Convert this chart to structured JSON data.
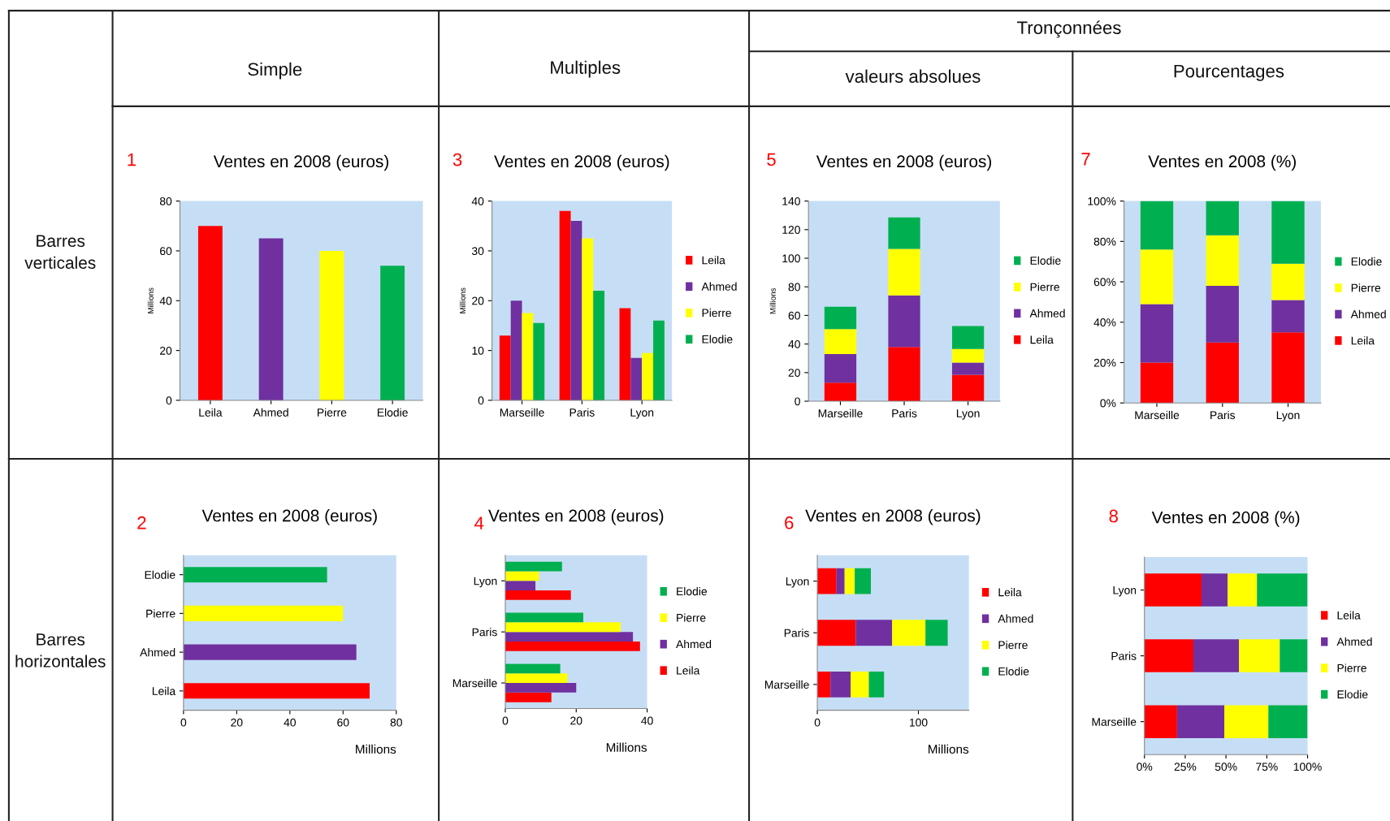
{
  "chart_data": [
    {
      "type": "bar",
      "title": "Ventes en 2008 (euros)",
      "annotations": [
        "1",
        "Simple",
        "Multiples",
        "Tronçonnées",
        "valeurs absolues",
        "Pourcentages",
        "Barres verticales",
        "Barres horizontales"
      ],
      "ylabel": "Millions",
      "categories": [
        "Leila",
        "Ahmed",
        "Pierre",
        "Elodie"
      ],
      "values": [
        70,
        65,
        60,
        54
      ],
      "colors": [
        "#ff0000",
        "#7030a0",
        "#ffff00",
        "#00b050"
      ],
      "ylim": [
        0,
        80
      ],
      "yticks": [
        0,
        20,
        40,
        60,
        80
      ],
      "legend": false
    },
    {
      "type": "bar",
      "title": "Ventes en 2008 (euros)",
      "annotations": [
        "2"
      ],
      "xlabel": "Millions",
      "orientation": "horizontal",
      "categories": [
        "Elodie",
        "Pierre",
        "Ahmed",
        "Leila"
      ],
      "values": [
        54,
        60,
        65,
        70
      ],
      "colors": [
        "#00b050",
        "#ffff00",
        "#7030a0",
        "#ff0000"
      ],
      "xlim": [
        0,
        80
      ],
      "xticks": [
        0,
        20,
        40,
        60,
        80
      ],
      "legend": false
    },
    {
      "type": "bar",
      "title": "Ventes en 2008 (euros)",
      "annotations": [
        "3"
      ],
      "ylabel": "Millions",
      "categories": [
        "Marseille",
        "Paris",
        "Lyon"
      ],
      "ylim": [
        0,
        40
      ],
      "yticks": [
        0,
        10,
        20,
        30,
        40
      ],
      "legend": "right",
      "series": [
        {
          "name": "Leila",
          "color": "#ff0000",
          "values": [
            13,
            38,
            18.5
          ]
        },
        {
          "name": "Ahmed",
          "color": "#7030a0",
          "values": [
            20,
            36,
            8.5
          ]
        },
        {
          "name": "Pierre",
          "color": "#ffff00",
          "values": [
            17.5,
            32.5,
            9.5
          ]
        },
        {
          "name": "Elodie",
          "color": "#00b050",
          "values": [
            15.5,
            22,
            16
          ]
        }
      ]
    },
    {
      "type": "bar",
      "title": "Ventes en 2008 (euros)",
      "annotations": [
        "4"
      ],
      "xlabel": "Millions",
      "orientation": "horizontal",
      "categories": [
        "Lyon",
        "Paris",
        "Marseille"
      ],
      "xlim": [
        0,
        40
      ],
      "xticks": [
        0,
        20,
        40
      ],
      "legend": "right",
      "series": [
        {
          "name": "Leila",
          "color": "#ff0000",
          "values": [
            18.5,
            38,
            13
          ]
        },
        {
          "name": "Ahmed",
          "color": "#7030a0",
          "values": [
            8.5,
            36,
            20
          ]
        },
        {
          "name": "Pierre",
          "color": "#ffff00",
          "values": [
            9.5,
            32.5,
            17.5
          ]
        },
        {
          "name": "Elodie",
          "color": "#00b050",
          "values": [
            16,
            22,
            15.5
          ]
        }
      ]
    },
    {
      "type": "bar",
      "title": "Ventes en 2008 (euros)",
      "annotations": [
        "5"
      ],
      "ylabel": "Millions",
      "stacked": true,
      "categories": [
        "Marseille",
        "Paris",
        "Lyon"
      ],
      "ylim": [
        0,
        140
      ],
      "yticks": [
        0,
        20,
        40,
        60,
        80,
        100,
        120,
        140
      ],
      "legend": "right",
      "series": [
        {
          "name": "Leila",
          "color": "#ff0000",
          "values": [
            13,
            38,
            18.5
          ]
        },
        {
          "name": "Ahmed",
          "color": "#7030a0",
          "values": [
            20,
            36,
            8.5
          ]
        },
        {
          "name": "Pierre",
          "color": "#ffff00",
          "values": [
            17.5,
            32.5,
            9.5
          ]
        },
        {
          "name": "Elodie",
          "color": "#00b050",
          "values": [
            15.5,
            22,
            16
          ]
        }
      ]
    },
    {
      "type": "bar",
      "title": "Ventes en 2008 (euros)",
      "annotations": [
        "6"
      ],
      "xlabel": "Millions",
      "orientation": "horizontal",
      "stacked": true,
      "categories": [
        "Lyon",
        "Paris",
        "Marseille"
      ],
      "xlim": [
        0,
        150
      ],
      "xticks": [
        0,
        100
      ],
      "legend": "right",
      "series": [
        {
          "name": "Leila",
          "color": "#ff0000",
          "values": [
            19,
            38,
            13
          ]
        },
        {
          "name": "Ahmed",
          "color": "#7030a0",
          "values": [
            8,
            36,
            20
          ]
        },
        {
          "name": "Pierre",
          "color": "#ffff00",
          "values": [
            10,
            33,
            18
          ]
        },
        {
          "name": "Elodie",
          "color": "#00b050",
          "values": [
            16,
            22,
            15
          ]
        }
      ]
    },
    {
      "type": "bar",
      "title": "Ventes en 2008 (%)",
      "annotations": [
        "7"
      ],
      "stacked": true,
      "categories": [
        "Marseille",
        "Paris",
        "Lyon"
      ],
      "ylim": [
        0,
        100
      ],
      "yticks": [
        {
          "value": 0,
          "label": "0%"
        },
        {
          "value": 20,
          "label": "20%"
        },
        {
          "value": 40,
          "label": "40%"
        },
        {
          "value": 60,
          "label": "60%"
        },
        {
          "value": 80,
          "label": "80%"
        },
        {
          "value": 100,
          "label": "100%"
        }
      ],
      "legend": "right",
      "series": [
        {
          "name": "Leila",
          "color": "#ff0000",
          "values": [
            20,
            30,
            35
          ]
        },
        {
          "name": "Ahmed",
          "color": "#7030a0",
          "values": [
            29,
            28,
            16
          ]
        },
        {
          "name": "Pierre",
          "color": "#ffff00",
          "values": [
            27,
            25,
            18
          ]
        },
        {
          "name": "Elodie",
          "color": "#00b050",
          "values": [
            24,
            17,
            31
          ]
        }
      ]
    },
    {
      "type": "bar",
      "title": "Ventes en 2008 (%)",
      "annotations": [
        "8"
      ],
      "orientation": "horizontal",
      "stacked": true,
      "categories": [
        "Lyon",
        "Paris",
        "Marseille"
      ],
      "xlim": [
        0,
        100
      ],
      "xticks": [
        {
          "value": 0,
          "label": "0%"
        },
        {
          "value": 25,
          "label": "25%"
        },
        {
          "value": 50,
          "label": "50%"
        },
        {
          "value": 75,
          "label": "75%"
        },
        {
          "value": 100,
          "label": "100%"
        }
      ],
      "legend": "right",
      "series": [
        {
          "name": "Leila",
          "color": "#ff0000",
          "values": [
            35,
            30,
            20
          ]
        },
        {
          "name": "Ahmed",
          "color": "#7030a0",
          "values": [
            16,
            28,
            29
          ]
        },
        {
          "name": "Pierre",
          "color": "#ffff00",
          "values": [
            18,
            25,
            27
          ]
        },
        {
          "name": "Elodie",
          "color": "#00b050",
          "values": [
            31,
            17,
            24
          ]
        }
      ]
    }
  ]
}
